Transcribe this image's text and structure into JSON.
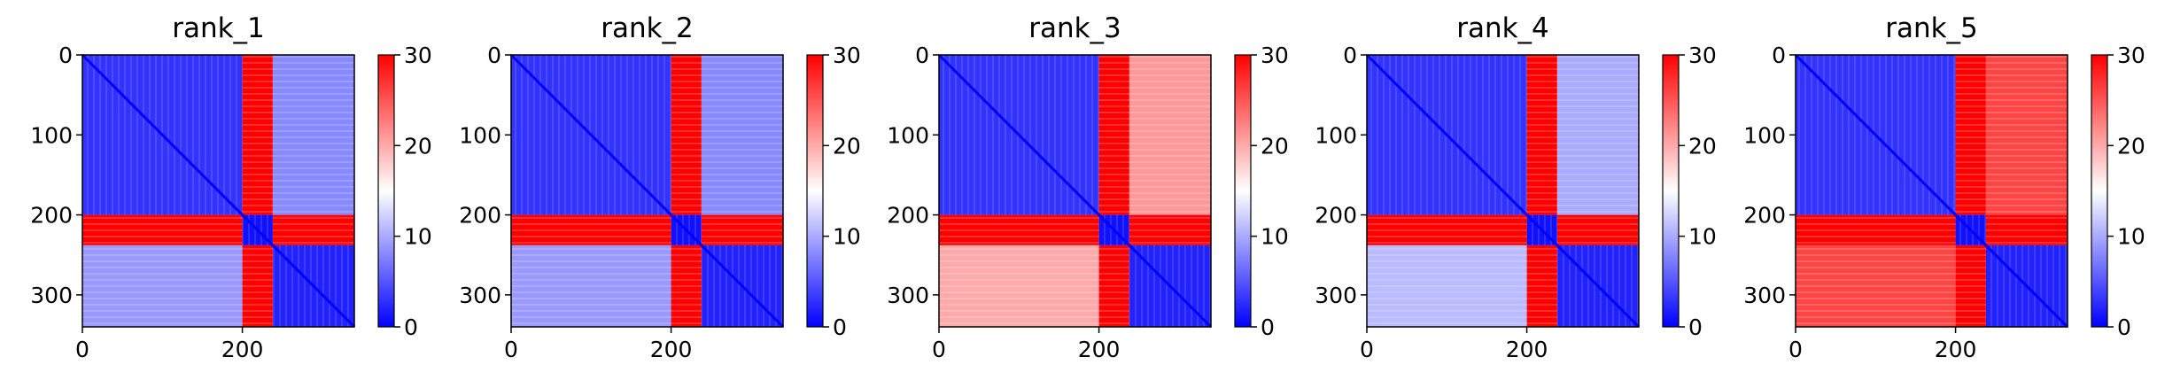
{
  "chart_data": [
    {
      "type": "heatmap",
      "title": "rank_1",
      "n_residues": 340,
      "x_ticks": [
        0,
        200
      ],
      "y_ticks": [
        0,
        100,
        200,
        300
      ],
      "colorbar": {
        "ticks": [
          0,
          10,
          20,
          30
        ],
        "range": [
          0,
          30
        ],
        "cmap": [
          "#0000ff",
          "#ffffff",
          "#ff0000"
        ]
      },
      "domains": [
        [
          0,
          200
        ],
        [
          200,
          238
        ],
        [
          238,
          340
        ]
      ],
      "block_values": [
        [
          3,
          30,
          8
        ],
        [
          30,
          1,
          30
        ],
        [
          9,
          30,
          2
        ]
      ]
    },
    {
      "type": "heatmap",
      "title": "rank_2",
      "n_residues": 340,
      "x_ticks": [
        0,
        200
      ],
      "y_ticks": [
        0,
        100,
        200,
        300
      ],
      "colorbar": {
        "ticks": [
          0,
          10,
          20,
          30
        ],
        "range": [
          0,
          30
        ],
        "cmap": [
          "#0000ff",
          "#ffffff",
          "#ff0000"
        ]
      },
      "domains": [
        [
          0,
          200
        ],
        [
          200,
          238
        ],
        [
          238,
          340
        ]
      ],
      "block_values": [
        [
          3,
          30,
          8
        ],
        [
          30,
          1,
          30
        ],
        [
          9,
          30,
          2
        ]
      ]
    },
    {
      "type": "heatmap",
      "title": "rank_3",
      "n_residues": 340,
      "x_ticks": [
        0,
        200
      ],
      "y_ticks": [
        0,
        100,
        200,
        300
      ],
      "colorbar": {
        "ticks": [
          0,
          10,
          20,
          30
        ],
        "range": [
          0,
          30
        ],
        "cmap": [
          "#0000ff",
          "#ffffff",
          "#ff0000"
        ]
      },
      "domains": [
        [
          0,
          200
        ],
        [
          200,
          238
        ],
        [
          238,
          340
        ]
      ],
      "block_values": [
        [
          3,
          30,
          21
        ],
        [
          30,
          1,
          30
        ],
        [
          20,
          30,
          2
        ]
      ]
    },
    {
      "type": "heatmap",
      "title": "rank_4",
      "n_residues": 340,
      "x_ticks": [
        0,
        200
      ],
      "y_ticks": [
        0,
        100,
        200,
        300
      ],
      "colorbar": {
        "ticks": [
          0,
          10,
          20,
          30
        ],
        "range": [
          0,
          30
        ],
        "cmap": [
          "#0000ff",
          "#ffffff",
          "#ff0000"
        ]
      },
      "domains": [
        [
          0,
          200
        ],
        [
          200,
          238
        ],
        [
          238,
          340
        ]
      ],
      "block_values": [
        [
          3,
          30,
          10
        ],
        [
          30,
          1,
          30
        ],
        [
          11,
          30,
          2
        ]
      ]
    },
    {
      "type": "heatmap",
      "title": "rank_5",
      "n_residues": 340,
      "x_ticks": [
        0,
        200
      ],
      "y_ticks": [
        0,
        100,
        200,
        300
      ],
      "colorbar": {
        "ticks": [
          0,
          10,
          20,
          30
        ],
        "range": [
          0,
          30
        ],
        "cmap": [
          "#0000ff",
          "#ffffff",
          "#ff0000"
        ]
      },
      "domains": [
        [
          0,
          200
        ],
        [
          200,
          238
        ],
        [
          238,
          340
        ]
      ],
      "block_values": [
        [
          3,
          30,
          26
        ],
        [
          30,
          1,
          30
        ],
        [
          26,
          30,
          2
        ]
      ]
    }
  ]
}
